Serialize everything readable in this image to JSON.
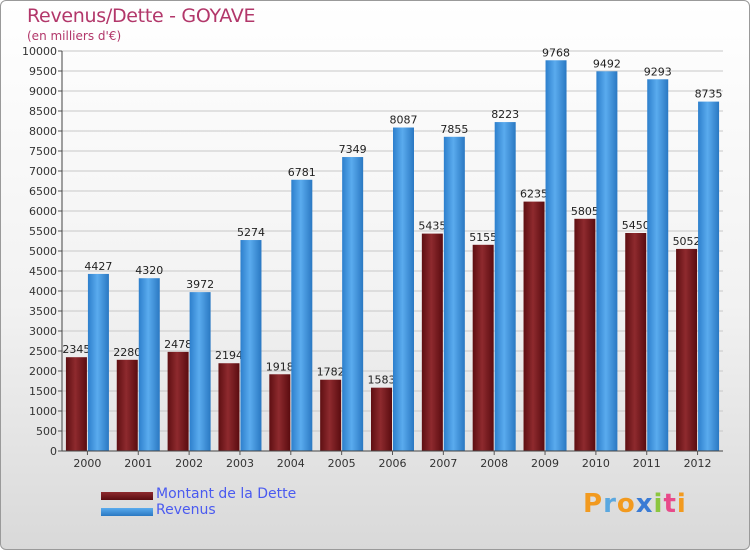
{
  "header": {
    "title": "Revenus/Dette - GOYAVE",
    "subtitle": "(en milliers d'€)"
  },
  "colors": {
    "dette": "#7a1a1e",
    "revenus": "#3f96e0",
    "title": "#b2376a",
    "legend_text": "#4a5af0"
  },
  "chart_data": {
    "type": "bar",
    "title": "Revenus/Dette - GOYAVE",
    "subtitle": "(en milliers d'€)",
    "categories": [
      "2000",
      "2001",
      "2002",
      "2003",
      "2004",
      "2005",
      "2006",
      "2007",
      "2008",
      "2009",
      "2010",
      "2011",
      "2012"
    ],
    "series": [
      {
        "name": "Montant de la Dette",
        "values": [
          2345,
          2280,
          2478,
          2194,
          1918,
          1782,
          1583,
          5435,
          5155,
          6235,
          5805,
          5450,
          5052
        ],
        "labels": [
          "2345",
          "2280",
          "2478",
          "2194",
          "1918",
          "1782",
          "1583",
          "5435",
          "5155",
          "6235",
          "5805",
          "5450",
          "5052"
        ]
      },
      {
        "name": "Revenus",
        "values": [
          4427,
          4320,
          3972,
          5274,
          6781,
          7349,
          8087,
          7855,
          8223,
          9768,
          9492,
          9293,
          8735
        ],
        "labels": [
          "4427",
          "4320",
          "3972",
          "5274",
          "6781",
          "7349",
          "8087",
          "7855",
          "8223",
          "9768",
          "9492",
          "9293",
          "8735"
        ]
      }
    ],
    "ylim": [
      0,
      10000
    ],
    "ytick_step": 500,
    "yticks": [
      "0",
      "500",
      "1000",
      "1500",
      "2000",
      "2500",
      "3000",
      "3500",
      "4000",
      "4500",
      "5000",
      "5500",
      "6000",
      "6500",
      "7000",
      "7500",
      "8000",
      "8500",
      "9000",
      "9500",
      "10000"
    ],
    "grid": true,
    "legend_position": "bottom-left"
  },
  "legend": {
    "items": [
      {
        "label": "Montant de la Dette"
      },
      {
        "label": "Revenus"
      }
    ]
  },
  "logo": {
    "letters": [
      "P",
      "r",
      "o",
      "x",
      "i",
      "t",
      "i"
    ],
    "colors": [
      "#f29a1f",
      "#5aa8e0",
      "#f29a1f",
      "#3a7bd5",
      "#8cc63f",
      "#e84a8a",
      "#f29a1f"
    ]
  }
}
